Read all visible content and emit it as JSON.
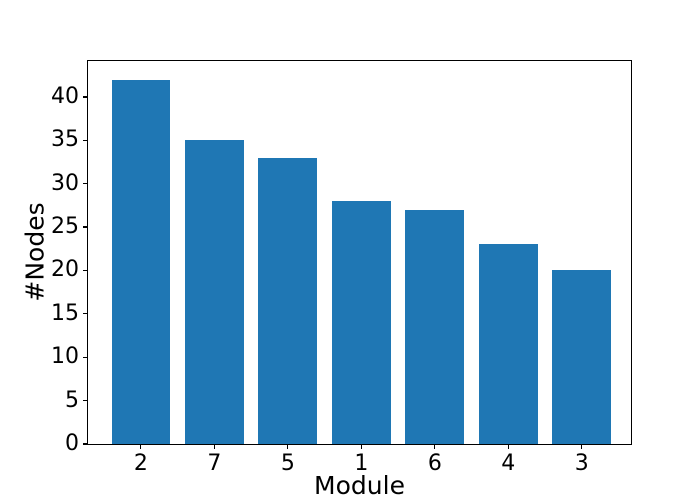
{
  "figure": {
    "background": "#ffffff"
  },
  "chart_data": {
    "type": "bar",
    "categories": [
      "2",
      "7",
      "5",
      "1",
      "6",
      "4",
      "3"
    ],
    "values": [
      42,
      35,
      33,
      28,
      27,
      23,
      20
    ],
    "title": "",
    "xlabel": "Module",
    "ylabel": "#Nodes",
    "ylim": [
      0,
      44.14
    ],
    "yticks": [
      0,
      5,
      10,
      15,
      20,
      25,
      30,
      35,
      40
    ],
    "xlim": [
      -0.72,
      6.67
    ],
    "bar_width_fraction": 0.8,
    "bar_color": "#1f77b4",
    "spine_color": "#000000",
    "grid": false,
    "legend": null
  }
}
